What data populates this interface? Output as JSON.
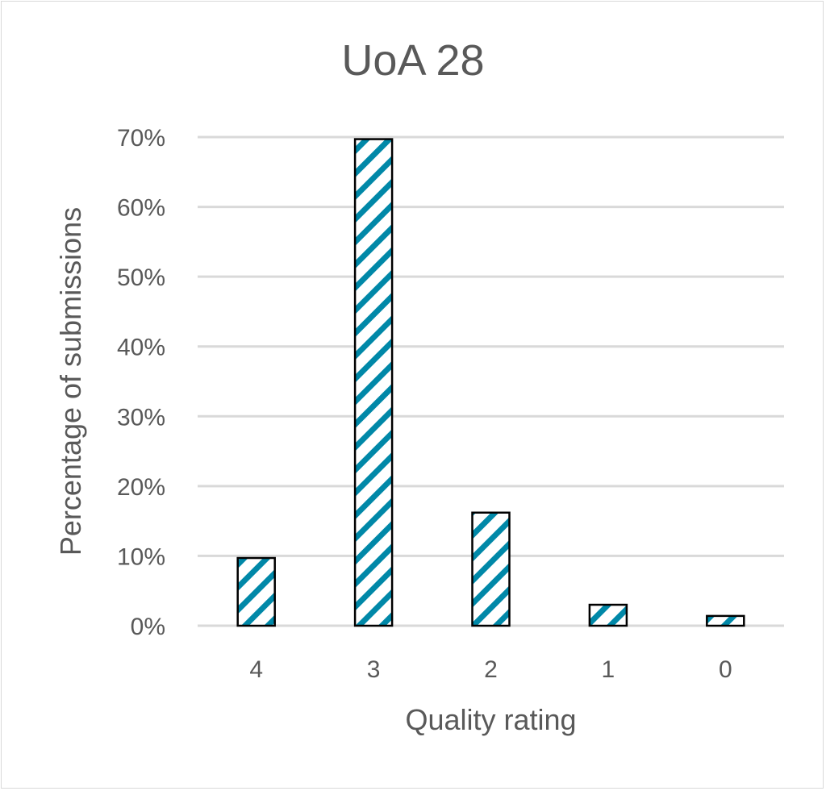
{
  "chart_data": {
    "type": "bar",
    "title": "UoA 28",
    "xlabel": "Quality rating",
    "ylabel": "Percentage of submissions",
    "categories": [
      "4",
      "3",
      "2",
      "1",
      "0"
    ],
    "values": [
      9.7,
      69.7,
      16.2,
      3.0,
      1.4
    ],
    "ylim": [
      0,
      70
    ],
    "yticks": [
      "0%",
      "10%",
      "20%",
      "30%",
      "40%",
      "50%",
      "60%",
      "70%"
    ],
    "grid": true,
    "legend": null,
    "bar_fill": "diagonal-stripe",
    "colors": {
      "stripe": "#0088a8",
      "bar_border": "#000000",
      "grid": "#d9d9d9",
      "text": "#595959"
    }
  }
}
